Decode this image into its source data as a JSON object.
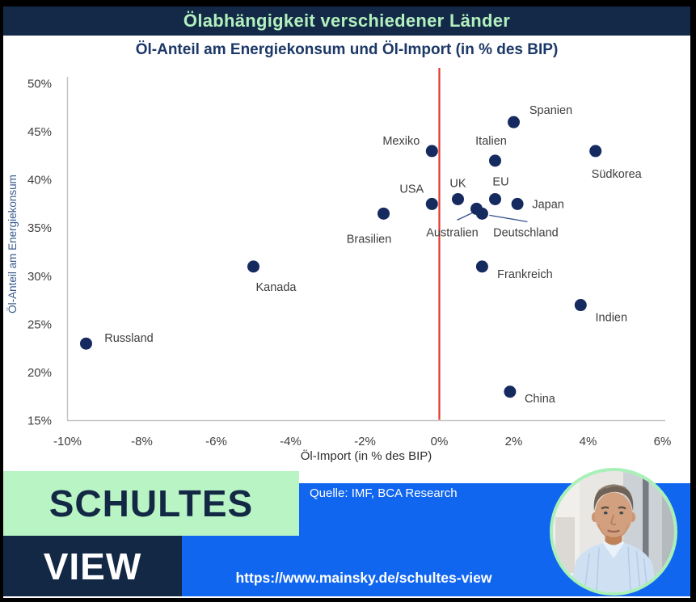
{
  "header": {
    "title": "Ölabhängigkeit verschiedener Länder"
  },
  "chart_data": {
    "type": "scatter",
    "title": "Öl-Anteil am Energiekonsum und Öl-Import (in % des BIP)",
    "xlabel": "Öl-Import (in % des BIP)",
    "ylabel": "Öl-Anteil am Energiekonsum",
    "xlim": [
      -10,
      6
    ],
    "ylim": [
      15,
      50
    ],
    "x_tick_values": [
      -10,
      -8,
      -6,
      -4,
      -2,
      0,
      2,
      4,
      6
    ],
    "x_tick_labels": [
      "-10%",
      "-8%",
      "-6%",
      "-4%",
      "-2%",
      "0%",
      "2%",
      "4%",
      "6%"
    ],
    "y_tick_values": [
      15,
      20,
      25,
      30,
      35,
      40,
      45,
      50
    ],
    "y_tick_labels": [
      "15%",
      "20%",
      "25%",
      "30%",
      "35%",
      "40%",
      "45%",
      "50%"
    ],
    "grid": false,
    "legend": "none",
    "reference_line_x": 0,
    "points": [
      {
        "name": "Russland",
        "x": -9.5,
        "y": 23,
        "label_offset": [
          53,
          -7
        ]
      },
      {
        "name": "Kanada",
        "x": -5,
        "y": 31,
        "label_offset": [
          28,
          25
        ]
      },
      {
        "name": "Brasilien",
        "x": -1.5,
        "y": 36.5,
        "label_offset": [
          -18,
          31
        ]
      },
      {
        "name": "Mexiko",
        "x": -0.2,
        "y": 43,
        "label_offset": [
          -38,
          -13
        ]
      },
      {
        "name": "USA",
        "x": -0.2,
        "y": 37.5,
        "label_offset": [
          -25,
          -19
        ]
      },
      {
        "name": "UK",
        "x": 0.5,
        "y": 38,
        "label_offset": [
          0,
          -20
        ]
      },
      {
        "name": "EU",
        "x": 1.5,
        "y": 38,
        "label_offset": [
          7,
          -22
        ]
      },
      {
        "name": "Italien",
        "x": 1.5,
        "y": 42,
        "label_offset": [
          -5,
          -25
        ]
      },
      {
        "name": "Spanien",
        "x": 2,
        "y": 46,
        "label_offset": [
          46,
          -15
        ]
      },
      {
        "name": "Japan",
        "x": 2.1,
        "y": 37.5,
        "label_offset": [
          38,
          0
        ]
      },
      {
        "name": "Australien",
        "x": 1,
        "y": 37,
        "label_offset": [
          -30,
          29
        ],
        "leader": [
          [
            -24,
            14
          ],
          [
            -3,
            4
          ]
        ]
      },
      {
        "name": "Deutschland",
        "x": 1.15,
        "y": 36.5,
        "label_offset": [
          54,
          23
        ],
        "leader": [
          [
            56,
            10
          ],
          [
            9,
            2
          ]
        ]
      },
      {
        "name": "Südkorea",
        "x": 4.2,
        "y": 43,
        "label_offset": [
          26,
          28
        ]
      },
      {
        "name": "Frankreich",
        "x": 1.15,
        "y": 31,
        "label_offset": [
          53,
          9
        ]
      },
      {
        "name": "Indien",
        "x": 3.8,
        "y": 27,
        "label_offset": [
          38,
          15
        ]
      },
      {
        "name": "China",
        "x": 1.9,
        "y": 18,
        "label_offset": [
          37,
          8
        ]
      }
    ]
  },
  "footer": {
    "brand_line1": "SCHULTES",
    "brand_line2": "VIEW",
    "source": "Quelle: IMF, BCA Research",
    "url": "https://www.mainsky.de/schultes-view"
  },
  "colors": {
    "header_bg": "#142947",
    "header_text": "#b2f0be",
    "subtitle_text": "#1c3867",
    "dot": "#152a5f",
    "reference_line": "#e2382e",
    "mint": "#b9f4c4",
    "blue_band": "#1166f0",
    "navy_box": "#132845",
    "axis": "#c3c3c3",
    "label_text": "#3d3d3d",
    "tick_text": "#3f3f3f",
    "ylabel_text": "#3b5c8e",
    "photo_ring": "#a9f0b8",
    "leader_line": "#31508c"
  }
}
